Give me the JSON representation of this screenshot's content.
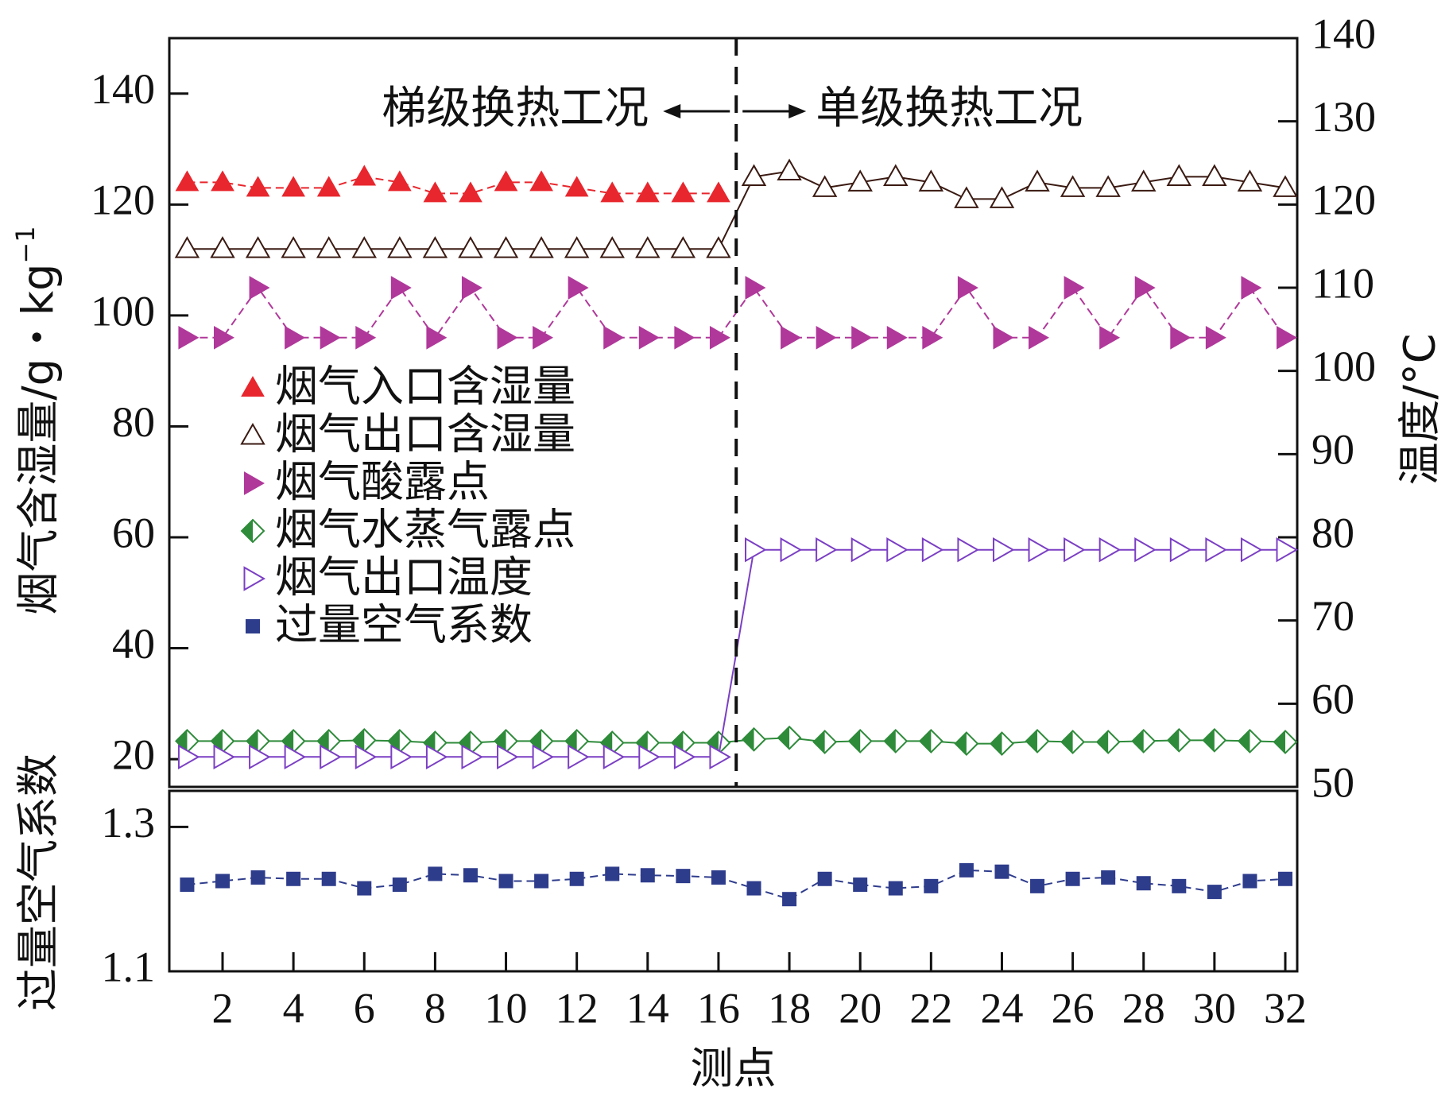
{
  "chart_data": {
    "type": "line",
    "xlabel": "测点",
    "x": [
      1,
      2,
      3,
      4,
      5,
      6,
      7,
      8,
      9,
      10,
      11,
      12,
      13,
      14,
      15,
      16,
      17,
      18,
      19,
      20,
      21,
      22,
      23,
      24,
      25,
      26,
      27,
      28,
      29,
      30,
      31,
      32
    ],
    "x_ticks": [
      2,
      4,
      6,
      8,
      10,
      12,
      14,
      16,
      18,
      20,
      22,
      24,
      26,
      28,
      30,
      32
    ],
    "top_panel": {
      "ylabel_left": "烟气含湿量/g・kg",
      "ylabel_left_sup": "−1",
      "ylim_left": [
        15,
        150
      ],
      "yticks_left": [
        20,
        40,
        60,
        80,
        100,
        120,
        140
      ],
      "ylabel_right": "温度/°C",
      "ylim_right": [
        50,
        140
      ],
      "yticks_right": [
        50,
        60,
        70,
        80,
        90,
        100,
        110,
        120,
        130,
        140
      ]
    },
    "bottom_panel": {
      "ylabel": "过量空气系数",
      "ylim": [
        1.1,
        1.35
      ],
      "yticks": [
        1.1,
        1.3
      ]
    },
    "divider_x": 16.5,
    "annotations": {
      "left_region": "梯级换热工况",
      "right_region": "单级换热工况"
    },
    "series": [
      {
        "name": "烟气入口含湿量",
        "axis": "left",
        "panel": "top",
        "color": "#e8262d",
        "marker": "triangle-up-filled",
        "x": [
          1,
          2,
          3,
          4,
          5,
          6,
          7,
          8,
          9,
          10,
          11,
          12,
          13,
          14,
          15,
          16
        ],
        "values": [
          124,
          124,
          123,
          123,
          123,
          125,
          124,
          122,
          122,
          124,
          124,
          123,
          122,
          122,
          122,
          122
        ]
      },
      {
        "name": "烟气出口含湿量",
        "axis": "left",
        "panel": "top",
        "color": "#3a1a12",
        "marker": "triangle-up-open",
        "x": [
          1,
          2,
          3,
          4,
          5,
          6,
          7,
          8,
          9,
          10,
          11,
          12,
          13,
          14,
          15,
          16,
          17,
          18,
          19,
          20,
          21,
          22,
          23,
          24,
          25,
          26,
          27,
          28,
          29,
          30,
          31,
          32
        ],
        "values": [
          112,
          112,
          112,
          112,
          112,
          112,
          112,
          112,
          112,
          112,
          112,
          112,
          112,
          112,
          112,
          112,
          125,
          126,
          123,
          124,
          125,
          124,
          121,
          121,
          124,
          123,
          123,
          124,
          125,
          125,
          124,
          123
        ]
      },
      {
        "name": "烟气酸露点",
        "axis": "right",
        "panel": "top",
        "color": "#b0389a",
        "marker": "triangle-right-filled",
        "x": [
          1,
          2,
          3,
          4,
          5,
          6,
          7,
          8,
          9,
          10,
          11,
          12,
          13,
          14,
          15,
          16,
          17,
          18,
          19,
          20,
          21,
          22,
          23,
          24,
          25,
          26,
          27,
          28,
          29,
          30,
          31,
          32
        ],
        "values": [
          104,
          104,
          110,
          104,
          104,
          104,
          110,
          104,
          110,
          104,
          104,
          110,
          104,
          104,
          104,
          104,
          110,
          104,
          104,
          104,
          104,
          104,
          110,
          104,
          104,
          110,
          104,
          110,
          104,
          104,
          110,
          104
        ]
      },
      {
        "name": "烟气水蒸气露点",
        "axis": "right",
        "panel": "top",
        "color": "#2e8b3a",
        "marker": "diamond-half",
        "x": [
          1,
          2,
          3,
          4,
          5,
          6,
          7,
          8,
          9,
          10,
          11,
          12,
          13,
          14,
          15,
          16,
          17,
          18,
          19,
          20,
          21,
          22,
          23,
          24,
          25,
          26,
          27,
          28,
          29,
          30,
          31,
          32
        ],
        "values": [
          55.5,
          55.5,
          55.5,
          55.5,
          55.5,
          55.6,
          55.5,
          55.3,
          55.3,
          55.5,
          55.5,
          55.5,
          55.3,
          55.3,
          55.3,
          55.3,
          55.7,
          55.9,
          55.4,
          55.5,
          55.5,
          55.5,
          55.2,
          55.2,
          55.5,
          55.4,
          55.4,
          55.5,
          55.6,
          55.6,
          55.5,
          55.4
        ]
      },
      {
        "name": "烟气出口温度",
        "axis": "right",
        "panel": "top",
        "color": "#7b3fc4",
        "marker": "triangle-right-open",
        "x": [
          1,
          2,
          3,
          4,
          5,
          6,
          7,
          8,
          9,
          10,
          11,
          12,
          13,
          14,
          15,
          16,
          17,
          18,
          19,
          20,
          21,
          22,
          23,
          24,
          25,
          26,
          27,
          28,
          29,
          30,
          31,
          32
        ],
        "values": [
          53.6,
          53.6,
          53.6,
          53.6,
          53.6,
          53.6,
          53.6,
          53.6,
          53.6,
          53.6,
          53.6,
          53.6,
          53.6,
          53.6,
          53.6,
          53.6,
          78.5,
          78.5,
          78.5,
          78.5,
          78.5,
          78.5,
          78.5,
          78.5,
          78.5,
          78.5,
          78.5,
          78.5,
          78.5,
          78.5,
          78.5,
          78.5
        ]
      },
      {
        "name": "过量空气系数",
        "axis": "left",
        "panel": "bottom",
        "color": "#2e3c8c",
        "marker": "square",
        "x": [
          1,
          2,
          3,
          4,
          5,
          6,
          7,
          8,
          9,
          10,
          11,
          12,
          13,
          14,
          15,
          16,
          17,
          18,
          19,
          20,
          21,
          22,
          23,
          24,
          25,
          26,
          27,
          28,
          29,
          30,
          31,
          32
        ],
        "values": [
          1.22,
          1.225,
          1.23,
          1.228,
          1.228,
          1.215,
          1.22,
          1.235,
          1.233,
          1.225,
          1.225,
          1.228,
          1.235,
          1.233,
          1.232,
          1.23,
          1.215,
          1.2,
          1.228,
          1.22,
          1.215,
          1.218,
          1.24,
          1.238,
          1.218,
          1.228,
          1.23,
          1.222,
          1.218,
          1.21,
          1.225,
          1.228
        ]
      }
    ]
  }
}
